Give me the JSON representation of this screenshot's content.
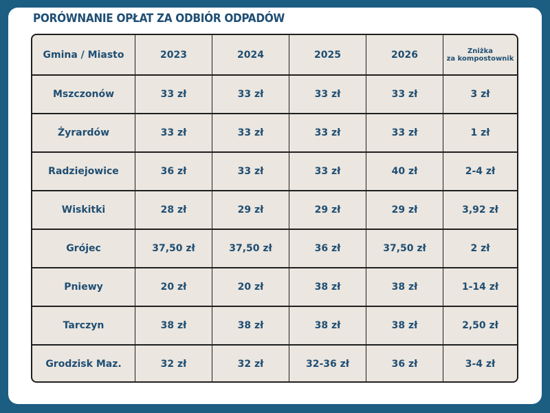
{
  "title": "PORÓWNANIE OPŁAT ZA ODBIÓR ODPADÓW",
  "chart_data": {
    "type": "table",
    "title": "PORÓWNANIE OPŁAT ZA ODBIÓR ODPADÓW",
    "header": [
      "Gmina / Miasto",
      "2023",
      "2024",
      "2025",
      "2026"
    ],
    "discount_header_line1": "Zniżka",
    "discount_header_line2": "za kompostownik",
    "rows": [
      [
        "Mszczonów",
        "33 zł",
        "33 zł",
        "33 zł",
        "33 zł",
        "3 zł"
      ],
      [
        "Żyrardów",
        "33 zł",
        "33 zł",
        "33 zł",
        "33 zł",
        "1 zł"
      ],
      [
        "Radziejowice",
        "36 zł",
        "33 zł",
        "33 zł",
        "40 zł",
        "2-4 zł"
      ],
      [
        "Wiskitki",
        "28 zł",
        "29 zł",
        "29 zł",
        "29 zł",
        "3,92 zł"
      ],
      [
        "Grójec",
        "37,50 zł",
        "37,50 zł",
        "36 zł",
        "37,50 zł",
        "2 zł"
      ],
      [
        "Pniewy",
        "20 zł",
        "20 zł",
        "38 zł",
        "38 zł",
        "1-14 zł"
      ],
      [
        "Tarczyn",
        "38 zł",
        "38 zł",
        "38 zł",
        "38 zł",
        "2,50 zł"
      ],
      [
        "Grodzisk Maz.",
        "32 zł",
        "32 zł",
        "32-36 zł",
        "36 zł",
        "3-4 zł"
      ]
    ]
  },
  "colors": {
    "background": "#1c5d82",
    "card": "#ffffff",
    "table_fill": "#ebe6df",
    "text": "#1f4e73",
    "border": "#1e1e1e"
  }
}
